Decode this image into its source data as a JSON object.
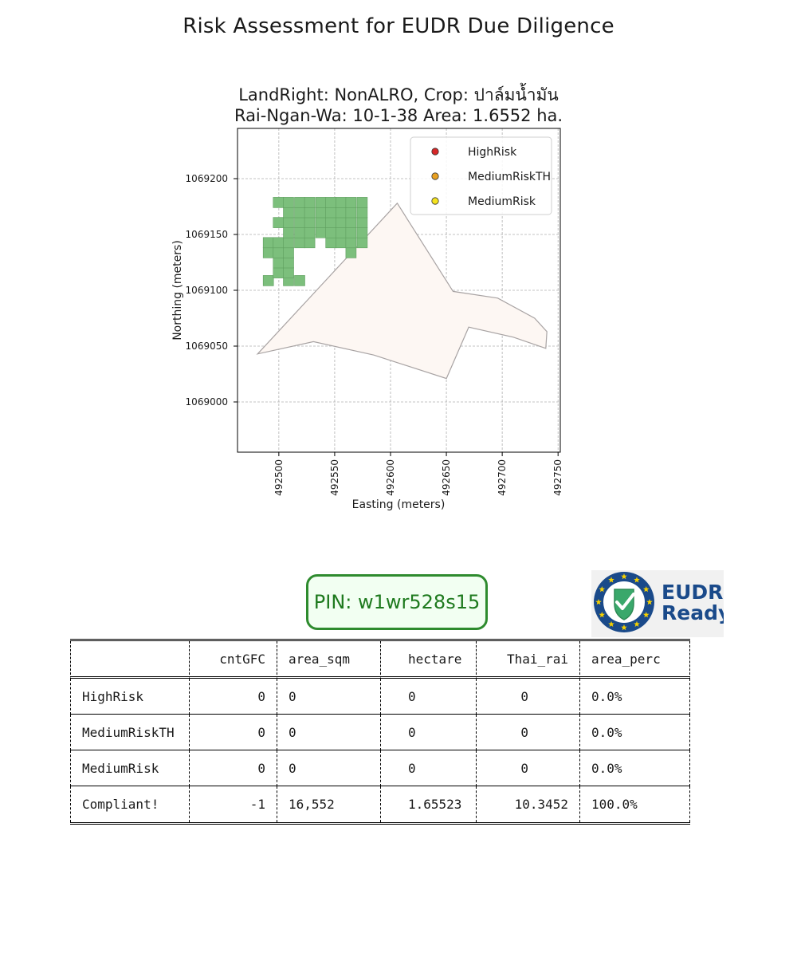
{
  "page": {
    "title": "Risk Assessment for EUDR Due Diligence",
    "pin_text": "PIN: w1wr528s15",
    "logo_text": [
      "EUDR",
      "Ready"
    ]
  },
  "chart_data": {
    "type": "scatter",
    "title_line1": "LandRight: NonALRO,  Crop: ปาล์มน้ำมัน",
    "title_line2": "Rai-Ngan-Wa: 10-1-38    Area: 1.6552 ha.",
    "xlabel": "Easting (meters)",
    "ylabel": "Northing (meters)",
    "xlim": [
      492463,
      492752
    ],
    "ylim": [
      1068955,
      1069245
    ],
    "xticks": [
      492500,
      492550,
      492600,
      492650,
      492700,
      492750
    ],
    "yticks": [
      1069000,
      1069050,
      1069100,
      1069150,
      1069200
    ],
    "grid": true,
    "legend_position": "top-right",
    "legend": [
      {
        "name": "HighRisk",
        "color": "#d62728"
      },
      {
        "name": "MediumRiskTH",
        "color": "#e8a020"
      },
      {
        "name": "MediumRisk",
        "color": "#f5e31f"
      }
    ],
    "plot_boundary": {
      "fill": "#fdf7f3",
      "stroke": "#a8a3a3",
      "points": [
        [
          492481,
          1069043
        ],
        [
          492606,
          1069178
        ],
        [
          492656,
          1069099
        ],
        [
          492696,
          1069093
        ],
        [
          492729,
          1069075
        ],
        [
          492740,
          1069063
        ],
        [
          492739,
          1069048
        ],
        [
          492710,
          1069058
        ],
        [
          492670,
          1069067
        ],
        [
          492650,
          1069021
        ],
        [
          492585,
          1069042
        ],
        [
          492531,
          1069054
        ],
        [
          492481,
          1069043
        ]
      ]
    },
    "forest_cells": {
      "color": "#7cbf7c",
      "edge": "#5e9e5e",
      "cell_size": 9.3,
      "cells": [
        [
          492486,
          1069104
        ],
        [
          492504,
          1069104
        ],
        [
          492514,
          1069104
        ],
        [
          492495,
          1069111
        ],
        [
          492504,
          1069111
        ],
        [
          492495,
          1069120
        ],
        [
          492504,
          1069120
        ],
        [
          492486,
          1069129
        ],
        [
          492495,
          1069129
        ],
        [
          492504,
          1069129
        ],
        [
          492560,
          1069129
        ],
        [
          492486,
          1069138
        ],
        [
          492495,
          1069138
        ],
        [
          492504,
          1069138
        ],
        [
          492514,
          1069138
        ],
        [
          492523,
          1069138
        ],
        [
          492542,
          1069138
        ],
        [
          492551,
          1069138
        ],
        [
          492560,
          1069138
        ],
        [
          492570,
          1069138
        ],
        [
          492504,
          1069147
        ],
        [
          492514,
          1069147
        ],
        [
          492523,
          1069147
        ],
        [
          492533,
          1069147
        ],
        [
          492542,
          1069147
        ],
        [
          492551,
          1069147
        ],
        [
          492560,
          1069147
        ],
        [
          492570,
          1069147
        ],
        [
          492495,
          1069156
        ],
        [
          492504,
          1069156
        ],
        [
          492514,
          1069156
        ],
        [
          492523,
          1069156
        ],
        [
          492533,
          1069156
        ],
        [
          492542,
          1069156
        ],
        [
          492551,
          1069156
        ],
        [
          492560,
          1069156
        ],
        [
          492570,
          1069156
        ],
        [
          492504,
          1069165
        ],
        [
          492514,
          1069165
        ],
        [
          492523,
          1069165
        ],
        [
          492533,
          1069165
        ],
        [
          492542,
          1069165
        ],
        [
          492551,
          1069165
        ],
        [
          492560,
          1069165
        ],
        [
          492570,
          1069165
        ],
        [
          492495,
          1069174
        ],
        [
          492504,
          1069174
        ],
        [
          492514,
          1069174
        ],
        [
          492523,
          1069174
        ],
        [
          492533,
          1069174
        ],
        [
          492542,
          1069174
        ],
        [
          492551,
          1069174
        ],
        [
          492560,
          1069174
        ],
        [
          492570,
          1069174
        ]
      ]
    }
  },
  "summary_table": {
    "columns": [
      "",
      "cntGFC",
      "area_sqm",
      "hectare",
      "Thai_rai",
      "area_perc"
    ],
    "rows": [
      [
        "HighRisk",
        "0",
        "0",
        "0",
        "0",
        "0.0%"
      ],
      [
        "MediumRiskTH",
        "0",
        "0",
        "0",
        "0",
        "0.0%"
      ],
      [
        "MediumRisk",
        "0",
        "0",
        "0",
        "0",
        "0.0%"
      ],
      [
        "Compliant!",
        "-1",
        "16,552",
        "1.65523",
        "10.3452",
        "100.0%"
      ]
    ]
  }
}
